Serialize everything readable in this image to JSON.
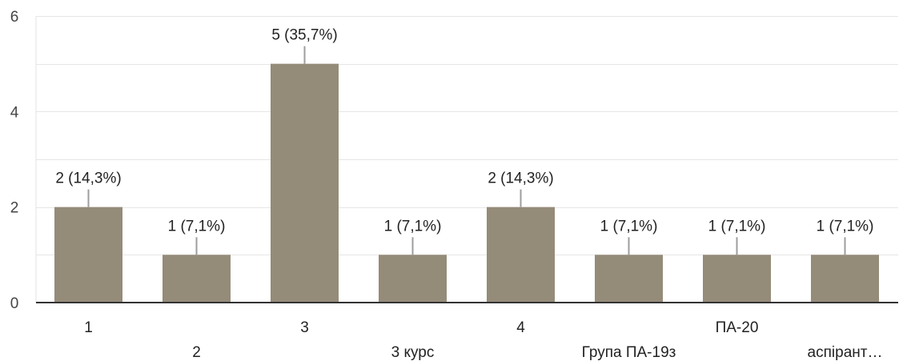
{
  "chart_data": {
    "type": "bar",
    "title": "",
    "xlabel": "",
    "ylabel": "",
    "ylim": [
      0,
      6
    ],
    "yticks": [
      0,
      2,
      4,
      6
    ],
    "grid": true,
    "legend": "none",
    "bar_color": "#958b79",
    "categories": [
      "1",
      "2",
      "3",
      "3 курс",
      "4",
      "Група ПА-19з",
      "ПА-20",
      "аспірант…"
    ],
    "values": [
      2,
      1,
      5,
      1,
      2,
      1,
      1,
      1
    ],
    "data_labels": [
      "2 (14,3%)",
      "1 (7,1%)",
      "5 (35,7%)",
      "1 (7,1%)",
      "2 (14,3%)",
      "1 (7,1%)",
      "1 (7,1%)",
      "1 (7,1%)"
    ]
  }
}
